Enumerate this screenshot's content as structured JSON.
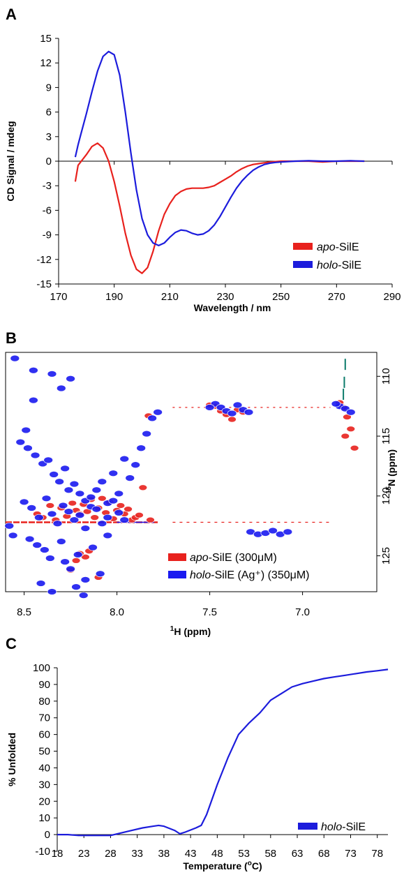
{
  "chart_data": [
    {
      "panel": "A",
      "type": "line",
      "xlabel": "Wavelength / nm",
      "ylabel": "CD Signal / mdeg",
      "xlim": [
        170,
        290
      ],
      "ylim": [
        -15,
        15
      ],
      "xticks": [
        "170",
        "190",
        "210",
        "230",
        "250",
        "270",
        "290"
      ],
      "yticks": [
        "15",
        "12",
        "9",
        "6",
        "3",
        "0",
        "-3",
        "-6",
        "-9",
        "-12",
        "-15"
      ],
      "legend": "bottom-right",
      "grid": false,
      "series": [
        {
          "name_prefix": "apo",
          "name_suffix": "-SilE",
          "color": "#e8211d",
          "x": [
            176,
            177,
            180,
            182,
            184,
            186,
            188,
            190,
            192,
            194,
            196,
            198,
            200,
            202,
            204,
            206,
            208,
            210,
            212,
            214,
            216,
            218,
            220,
            222,
            224,
            226,
            228,
            230,
            232,
            234,
            236,
            238,
            240,
            242,
            244,
            246,
            250,
            255,
            260,
            265,
            270,
            275,
            280
          ],
          "y": [
            -2.5,
            -0.5,
            0.8,
            1.8,
            2.2,
            1.6,
            0.0,
            -2.5,
            -5.5,
            -8.8,
            -11.5,
            -13.2,
            -13.7,
            -13.0,
            -11.0,
            -8.5,
            -6.5,
            -5.2,
            -4.2,
            -3.7,
            -3.4,
            -3.3,
            -3.3,
            -3.3,
            -3.2,
            -3.0,
            -2.6,
            -2.2,
            -1.8,
            -1.3,
            -0.9,
            -0.6,
            -0.4,
            -0.3,
            -0.2,
            -0.1,
            0.0,
            0.0,
            0.0,
            -0.1,
            0.0,
            0.0,
            0.0
          ]
        },
        {
          "name_prefix": "holo",
          "name_suffix": "-SilE",
          "color": "#1c1cdc",
          "x": [
            176,
            177,
            178,
            180,
            182,
            184,
            186,
            188,
            190,
            192,
            194,
            196,
            198,
            200,
            202,
            204,
            206,
            208,
            210,
            212,
            214,
            216,
            218,
            220,
            222,
            224,
            226,
            228,
            230,
            232,
            234,
            236,
            238,
            240,
            242,
            244,
            246,
            248,
            250,
            255,
            260,
            265,
            270,
            275,
            280
          ],
          "y": [
            0.5,
            2.0,
            3.3,
            5.8,
            8.5,
            11.0,
            12.8,
            13.4,
            13.0,
            10.5,
            6.0,
            1.0,
            -3.5,
            -7.0,
            -9.0,
            -10.0,
            -10.3,
            -10.0,
            -9.3,
            -8.7,
            -8.4,
            -8.5,
            -8.8,
            -9.0,
            -8.9,
            -8.5,
            -7.8,
            -6.8,
            -5.6,
            -4.4,
            -3.3,
            -2.4,
            -1.7,
            -1.1,
            -0.7,
            -0.4,
            -0.25,
            -0.15,
            -0.1,
            0.0,
            0.05,
            0.0,
            0.0,
            0.05,
            0.0
          ]
        }
      ]
    },
    {
      "panel": "B",
      "type": "scatter",
      "subtype": "2D NMR contour spectrum (1H-15N HSQC)",
      "xlabel_sup": "1",
      "xlabel_main": "H (ppm)",
      "ylabel_sup": "15",
      "ylabel_main": "N (ppm)",
      "xlim": [
        8.6,
        6.6
      ],
      "ylim": [
        128,
        108
      ],
      "xticks": [
        "8.5",
        "8.0",
        "7.5",
        "7.0"
      ],
      "yticks": [
        "110",
        "115",
        "120",
        "125"
      ],
      "legend": "bottom-right",
      "series": [
        {
          "name_prefix": "apo",
          "name_suffix": "-SilE (300μM)",
          "color": "#e8211d",
          "x": [
            8.43,
            8.4,
            8.36,
            8.33,
            8.3,
            8.27,
            8.24,
            8.22,
            8.2,
            8.18,
            8.16,
            8.14,
            8.12,
            8.1,
            8.08,
            8.06,
            8.04,
            8.02,
            8.0,
            7.98,
            7.96,
            7.94,
            7.92,
            7.9,
            7.88,
            8.15,
            8.17,
            8.2,
            8.22,
            8.25,
            7.47,
            7.44,
            7.41,
            7.38,
            7.35,
            7.32,
            7.5,
            6.78,
            6.76,
            6.74,
            6.72,
            6.8,
            6.77,
            7.83,
            7.86,
            8.1,
            7.82
          ],
          "y": [
            121.5,
            121.8,
            120.8,
            122.0,
            121.0,
            121.7,
            120.6,
            121.2,
            121.5,
            120.7,
            121.3,
            120.3,
            121.8,
            121.0,
            120.2,
            121.4,
            120.5,
            121.9,
            121.2,
            120.8,
            121.5,
            121.1,
            122.0,
            121.8,
            121.6,
            124.6,
            125.1,
            124.8,
            125.4,
            126.2,
            112.5,
            112.9,
            113.2,
            113.6,
            112.8,
            113.0,
            112.4,
            112.6,
            113.4,
            114.4,
            116.0,
            112.2,
            115.0,
            113.3,
            119.3,
            126.8,
            122.0
          ]
        },
        {
          "name_prefix": "holo",
          "name_suffix": "-SilE (Ag⁺) (350μM)",
          "color": "#1a1af0",
          "x": [
            8.55,
            8.45,
            8.35,
            8.3,
            8.25,
            8.52,
            8.48,
            8.44,
            8.4,
            8.37,
            8.34,
            8.31,
            8.28,
            8.26,
            8.23,
            8.2,
            8.17,
            8.14,
            8.11,
            8.08,
            8.05,
            8.02,
            7.99,
            7.96,
            7.93,
            7.9,
            7.87,
            7.84,
            7.81,
            7.78,
            8.5,
            8.46,
            8.42,
            8.38,
            8.35,
            8.32,
            8.29,
            8.26,
            8.23,
            8.2,
            8.17,
            8.14,
            8.11,
            8.08,
            8.05,
            8.02,
            7.99,
            7.96,
            8.58,
            8.56,
            8.47,
            8.43,
            8.39,
            8.36,
            8.3,
            8.28,
            8.25,
            8.21,
            8.17,
            8.13,
            8.09,
            8.05,
            8.41,
            8.35,
            8.22,
            8.18,
            8.45,
            8.49,
            7.47,
            7.44,
            7.41,
            7.38,
            7.35,
            7.32,
            7.29,
            7.5,
            6.8,
            6.77,
            6.74,
            6.82,
            7.28,
            7.24,
            7.2,
            7.16,
            7.12,
            7.08
          ],
          "y": [
            108.5,
            109.5,
            109.8,
            111.0,
            110.2,
            115.5,
            116.0,
            116.6,
            117.3,
            117.0,
            118.2,
            118.8,
            117.7,
            119.5,
            119.0,
            119.8,
            120.4,
            120.1,
            119.5,
            118.8,
            120.6,
            118.1,
            119.8,
            116.9,
            118.5,
            117.4,
            116.0,
            114.8,
            113.5,
            113.0,
            120.5,
            121.0,
            121.8,
            120.2,
            121.5,
            122.3,
            120.8,
            121.3,
            122.0,
            121.6,
            122.7,
            120.9,
            121.1,
            122.3,
            121.8,
            120.4,
            121.4,
            122.0,
            122.5,
            123.3,
            123.6,
            124.1,
            124.5,
            125.2,
            123.8,
            125.5,
            126.1,
            124.9,
            127.0,
            124.3,
            126.5,
            123.3,
            127.3,
            128.0,
            127.6,
            128.3,
            112.0,
            114.5,
            112.3,
            112.6,
            112.9,
            113.1,
            112.4,
            112.8,
            113.0,
            112.6,
            112.5,
            112.7,
            113.0,
            112.3,
            123.0,
            123.2,
            123.1,
            122.9,
            123.2,
            123.0
          ]
        },
        {
          "name": "",
          "color": "#0a7a6a",
          "x": [
            6.77,
            6.775,
            6.78
          ],
          "y": [
            109.0,
            110.5,
            111.5
          ]
        }
      ]
    },
    {
      "panel": "C",
      "type": "line",
      "xlabel_main": "Temperature (",
      "xlabel_sup": "o",
      "xlabel_end": "C)",
      "ylabel": "% Unfolded",
      "xlim": [
        18,
        80
      ],
      "ylim": [
        -10,
        100
      ],
      "xticks": [
        "18",
        "23",
        "28",
        "33",
        "38",
        "43",
        "48",
        "53",
        "58",
        "63",
        "68",
        "73",
        "78"
      ],
      "yticks": [
        "100",
        "90",
        "80",
        "70",
        "60",
        "50",
        "40",
        "30",
        "20",
        "10",
        "0",
        "-10"
      ],
      "legend": "bottom-right",
      "grid": false,
      "series": [
        {
          "name_prefix": "holo",
          "name_suffix": "-SilE",
          "color": "#1c1cdc",
          "x": [
            18,
            20,
            22,
            24,
            26,
            28,
            30,
            32,
            34,
            36,
            37,
            38,
            40,
            41,
            42,
            44,
            45,
            46,
            48,
            50,
            52,
            54,
            56,
            58,
            60,
            62,
            64,
            66,
            68,
            70,
            72,
            74,
            76,
            78,
            80
          ],
          "y": [
            0,
            0,
            -0.5,
            -0.5,
            -0.5,
            -0.5,
            1,
            2.5,
            4,
            5,
            5.5,
            5,
            2.5,
            0.5,
            1.5,
            4,
            5.5,
            12,
            30,
            46,
            60,
            67,
            73,
            80.5,
            84.5,
            88.5,
            90.5,
            92,
            93.5,
            94.5,
            95.5,
            96.5,
            97.5,
            98.2,
            99
          ]
        }
      ]
    }
  ]
}
